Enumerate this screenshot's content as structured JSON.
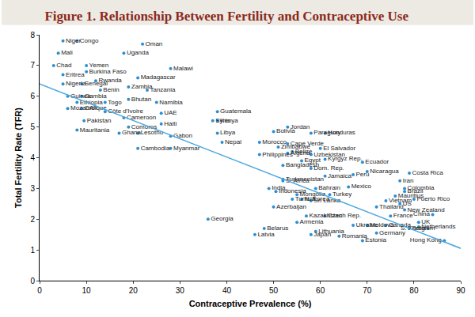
{
  "chart_data": {
    "type": "scatter",
    "title": "Figure 1. Relationship Between Fertility and Contraceptive Use",
    "x_label": "Contraceptive Prevalence (%)",
    "y_label": "Total Fertility Rate (TFR)",
    "xlim": [
      0,
      90
    ],
    "xticks": [
      0,
      10,
      20,
      30,
      40,
      50,
      60,
      70,
      80,
      90
    ],
    "ylim": [
      0,
      8
    ],
    "yticks": [
      0,
      1,
      2,
      3,
      4,
      5,
      6,
      7,
      8
    ],
    "grid": false,
    "series": [
      {
        "type": "scatter",
        "marker": "circle",
        "color": "#2b8fd6",
        "labels": [
          "Niger",
          "Congo",
          "Mali",
          "Chad",
          "Yemen",
          "Uganda",
          "Oman",
          "Eritrea",
          "Burkina Faso",
          "Malawi",
          "Madagascar",
          "Nigeria",
          "Senegal",
          "Rwanda",
          "Zambia",
          "Benin",
          "Tanzania",
          "Guinea",
          "Gambia",
          "Bhutan",
          "Ethiopia",
          "Togo",
          "Namibia",
          "Mozambique",
          "CAR",
          "Côte d'Ivoire",
          "UAE",
          "Guatemala",
          "Pakistan",
          "Cameroon",
          "Haiti",
          "Syria",
          "Kenya",
          "Comoros",
          "Mauritania",
          "Ghana",
          "Lesotho",
          "Gabon",
          "Libya",
          "Nepal",
          "Bolivia",
          "Jordan",
          "Paraguay",
          "Honduras",
          "Morocco",
          "Cambodia",
          "Myanmar",
          "Zimbabwe",
          "Cape Verde",
          "Philippines",
          "Algeria",
          "Belize",
          "Egypt",
          "Uzbekistan",
          "El Salvador",
          "Kyrgyz Rep.",
          "Ecuador",
          "Bangladesh",
          "Dom. Rep.",
          "Nicaragua",
          "Turkmenistan",
          "India",
          "S. Africa",
          "Jamaica",
          "Peru",
          "Costa Rica",
          "Iran",
          "Indonesia",
          "Tunisia",
          "Bahrain",
          "Mexico",
          "Mongolia",
          "Colombia",
          "Brazil",
          "Mauritius",
          "Puerto Rico",
          "N. Korea",
          "Sri Lanka",
          "Turkey",
          "Vietnam",
          "US",
          "Azerbaijan",
          "Thailand",
          "New Zealand",
          "Kazakhstan",
          "Czech Rep.",
          "France",
          "Armenia",
          "China",
          "Moldova",
          "UK",
          "Netherlands",
          "Belgium",
          "Canada",
          "S. Korea",
          "Georgia",
          "Ukraine",
          "Germany",
          "Belarus",
          "Latvia",
          "Lithuania",
          "Japan",
          "Romania",
          "Estonia",
          "Hong Kong"
        ],
        "x": [
          5,
          8,
          4,
          3,
          10,
          18,
          22,
          5,
          10,
          28,
          21,
          5,
          9,
          12,
          19,
          13,
          23,
          6,
          9,
          19,
          8,
          14,
          25,
          6,
          9,
          14,
          26,
          38,
          9.5,
          18,
          26,
          37,
          38,
          19,
          8,
          17,
          21,
          28,
          38,
          39,
          50,
          53,
          58,
          61,
          47,
          21,
          28,
          51,
          53,
          47,
          53,
          54,
          56,
          58,
          60,
          61,
          69,
          52,
          58,
          70,
          52,
          49,
          52,
          61,
          67,
          79,
          77,
          50.5,
          54,
          59,
          66,
          55,
          78,
          78,
          76,
          80,
          56,
          58,
          62,
          74,
          77,
          50,
          72,
          78,
          57,
          61,
          75,
          55,
          84,
          70,
          81,
          81,
          79,
          74,
          83,
          36,
          67,
          72,
          48,
          46,
          59,
          58,
          64,
          69,
          86.5
        ],
        "values": [
          7.8,
          7.8,
          7.4,
          7.0,
          7.0,
          7.4,
          7.7,
          6.7,
          6.8,
          6.9,
          6.6,
          6.4,
          6.4,
          6.5,
          6.3,
          6.2,
          6.2,
          6.0,
          6.0,
          5.9,
          5.8,
          5.8,
          5.8,
          5.6,
          5.6,
          5.5,
          5.45,
          5.5,
          5.2,
          5.3,
          5.1,
          5.2,
          5.2,
          5.0,
          4.9,
          4.8,
          4.8,
          4.7,
          4.8,
          4.5,
          4.85,
          5.0,
          4.8,
          4.8,
          4.5,
          4.3,
          4.3,
          4.35,
          4.45,
          4.1,
          4.15,
          4.2,
          3.9,
          4.1,
          4.3,
          3.95,
          3.85,
          3.75,
          3.65,
          3.55,
          3.3,
          3.0,
          3.25,
          3.4,
          3.45,
          3.5,
          3.25,
          2.9,
          2.65,
          3.0,
          3.05,
          2.8,
          3.0,
          2.9,
          2.75,
          2.65,
          2.65,
          2.6,
          2.8,
          2.6,
          2.5,
          2.4,
          2.4,
          2.3,
          2.1,
          2.1,
          2.1,
          1.9,
          2.15,
          1.8,
          1.9,
          1.75,
          1.7,
          1.8,
          1.7,
          2.0,
          1.8,
          1.55,
          1.7,
          1.5,
          1.6,
          1.5,
          1.45,
          1.3,
          1.3
        ]
      },
      {
        "type": "line",
        "line_style": "solid",
        "color": "#4aa8e0",
        "x": [
          0,
          90
        ],
        "values": [
          6.4,
          1.05
        ]
      }
    ]
  }
}
